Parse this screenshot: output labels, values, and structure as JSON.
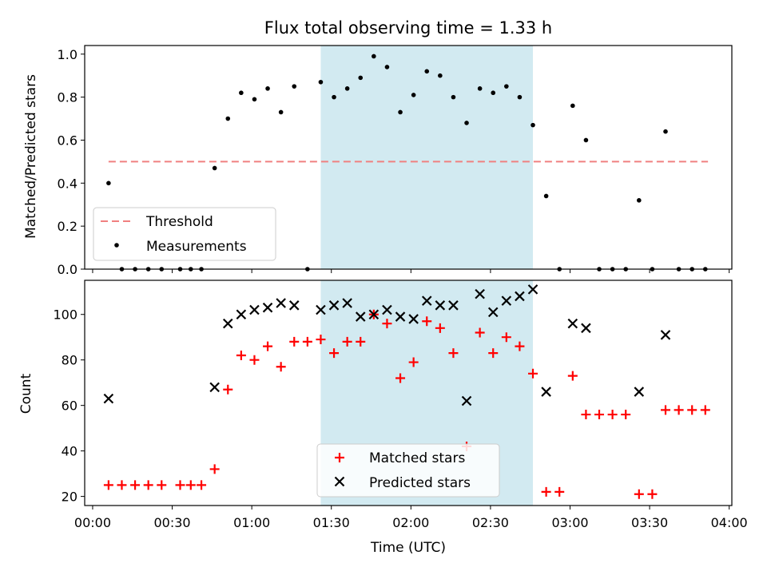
{
  "figure": {
    "title": "Flux total observing time = 1.33 h"
  },
  "colors": {
    "threshold": "#f08080",
    "matched": "#ff0000",
    "predicted": "#000000",
    "highlight": "#add8e6"
  },
  "chart_data": [
    {
      "type": "scatter",
      "panel": "top",
      "title": "Flux total observing time = 1.33 h",
      "xlabel": "",
      "ylabel": "Matched/Predicted stars",
      "xlim": [
        "23:57",
        "04:01"
      ],
      "ylim": [
        0,
        1.04
      ],
      "yticks": [
        0.0,
        0.2,
        0.4,
        0.6,
        0.8,
        1.0
      ],
      "ytick_labels": [
        "0.0",
        "0.2",
        "0.4",
        "0.6",
        "0.8",
        "1.0"
      ],
      "highlight_span": [
        "01:26",
        "02:46"
      ],
      "legend": {
        "placement": "lower-left",
        "entries": [
          "Threshold",
          "Measurements"
        ]
      },
      "threshold": {
        "name": "Threshold",
        "y": 0.5,
        "x_range": [
          "00:06",
          "03:52"
        ]
      },
      "series": [
        {
          "name": "Measurements",
          "points": [
            [
              "00:06",
              0.4
            ],
            [
              "00:11",
              0.0
            ],
            [
              "00:16",
              0.0
            ],
            [
              "00:21",
              0.0
            ],
            [
              "00:26",
              0.0
            ],
            [
              "00:33",
              0.0
            ],
            [
              "00:37",
              0.0
            ],
            [
              "00:41",
              0.0
            ],
            [
              "00:46",
              0.47
            ],
            [
              "00:51",
              0.7
            ],
            [
              "00:56",
              0.82
            ],
            [
              "01:01",
              0.79
            ],
            [
              "01:06",
              0.84
            ],
            [
              "01:11",
              0.73
            ],
            [
              "01:16",
              0.85
            ],
            [
              "01:21",
              0.0
            ],
            [
              "01:26",
              0.87
            ],
            [
              "01:31",
              0.8
            ],
            [
              "01:36",
              0.84
            ],
            [
              "01:41",
              0.89
            ],
            [
              "01:46",
              0.99
            ],
            [
              "01:51",
              0.94
            ],
            [
              "01:56",
              0.73
            ],
            [
              "02:01",
              0.81
            ],
            [
              "02:06",
              0.92
            ],
            [
              "02:11",
              0.9
            ],
            [
              "02:16",
              0.8
            ],
            [
              "02:21",
              0.68
            ],
            [
              "02:26",
              0.84
            ],
            [
              "02:31",
              0.82
            ],
            [
              "02:36",
              0.85
            ],
            [
              "02:41",
              0.8
            ],
            [
              "02:46",
              0.67
            ],
            [
              "02:51",
              0.34
            ],
            [
              "02:56",
              0.0
            ],
            [
              "03:01",
              0.76
            ],
            [
              "03:06",
              0.6
            ],
            [
              "03:11",
              0.0
            ],
            [
              "03:16",
              0.0
            ],
            [
              "03:21",
              0.0
            ],
            [
              "03:26",
              0.32
            ],
            [
              "03:31",
              0.0
            ],
            [
              "03:36",
              0.64
            ],
            [
              "03:41",
              0.0
            ],
            [
              "03:46",
              0.0
            ],
            [
              "03:51",
              0.0
            ]
          ]
        }
      ]
    },
    {
      "type": "scatter",
      "panel": "bottom",
      "xlabel": "Time (UTC)",
      "ylabel": "Count",
      "xlim": [
        "23:57",
        "04:01"
      ],
      "ylim": [
        16,
        115
      ],
      "xticks": [
        "00:00",
        "00:30",
        "01:00",
        "01:30",
        "02:00",
        "02:30",
        "03:00",
        "03:30",
        "04:00"
      ],
      "xtick_labels": [
        "00:00",
        "00:30",
        "01:00",
        "01:30",
        "02:00",
        "02:30",
        "03:00",
        "03:30",
        "04:00"
      ],
      "yticks": [
        20,
        40,
        60,
        80,
        100
      ],
      "ytick_labels": [
        "20",
        "40",
        "60",
        "80",
        "100"
      ],
      "highlight_span": [
        "01:26",
        "02:46"
      ],
      "legend": {
        "placement": "lower-center",
        "entries": [
          "Matched stars",
          "Predicted stars"
        ]
      },
      "series": [
        {
          "name": "Matched stars",
          "marker": "plus",
          "points": [
            [
              "00:06",
              25
            ],
            [
              "00:11",
              25
            ],
            [
              "00:16",
              25
            ],
            [
              "00:21",
              25
            ],
            [
              "00:26",
              25
            ],
            [
              "00:33",
              25
            ],
            [
              "00:37",
              25
            ],
            [
              "00:41",
              25
            ],
            [
              "00:46",
              32
            ],
            [
              "00:51",
              67
            ],
            [
              "00:56",
              82
            ],
            [
              "01:01",
              80
            ],
            [
              "01:06",
              86
            ],
            [
              "01:11",
              77
            ],
            [
              "01:16",
              88
            ],
            [
              "01:21",
              88
            ],
            [
              "01:26",
              89
            ],
            [
              "01:31",
              83
            ],
            [
              "01:36",
              88
            ],
            [
              "01:41",
              88
            ],
            [
              "01:46",
              100
            ],
            [
              "01:51",
              96
            ],
            [
              "01:56",
              72
            ],
            [
              "02:01",
              79
            ],
            [
              "02:06",
              97
            ],
            [
              "02:11",
              94
            ],
            [
              "02:16",
              83
            ],
            [
              "02:21",
              42
            ],
            [
              "02:26",
              92
            ],
            [
              "02:31",
              83
            ],
            [
              "02:36",
              90
            ],
            [
              "02:41",
              86
            ],
            [
              "02:46",
              74
            ],
            [
              "02:51",
              22
            ],
            [
              "02:56",
              22
            ],
            [
              "03:01",
              73
            ],
            [
              "03:06",
              56
            ],
            [
              "03:11",
              56
            ],
            [
              "03:16",
              56
            ],
            [
              "03:21",
              56
            ],
            [
              "03:26",
              21
            ],
            [
              "03:31",
              21
            ],
            [
              "03:36",
              58
            ],
            [
              "03:41",
              58
            ],
            [
              "03:46",
              58
            ],
            [
              "03:51",
              58
            ]
          ]
        },
        {
          "name": "Predicted stars",
          "marker": "x",
          "points": [
            [
              "00:06",
              63
            ],
            [
              "00:46",
              68
            ],
            [
              "00:51",
              96
            ],
            [
              "00:56",
              100
            ],
            [
              "01:01",
              102
            ],
            [
              "01:06",
              103
            ],
            [
              "01:11",
              105
            ],
            [
              "01:16",
              104
            ],
            [
              "01:26",
              102
            ],
            [
              "01:31",
              104
            ],
            [
              "01:36",
              105
            ],
            [
              "01:41",
              99
            ],
            [
              "01:46",
              100
            ],
            [
              "01:51",
              102
            ],
            [
              "01:56",
              99
            ],
            [
              "02:01",
              98
            ],
            [
              "02:06",
              106
            ],
            [
              "02:11",
              104
            ],
            [
              "02:16",
              104
            ],
            [
              "02:21",
              62
            ],
            [
              "02:26",
              109
            ],
            [
              "02:31",
              101
            ],
            [
              "02:36",
              106
            ],
            [
              "02:41",
              108
            ],
            [
              "02:46",
              111
            ],
            [
              "02:51",
              66
            ],
            [
              "03:01",
              96
            ],
            [
              "03:06",
              94
            ],
            [
              "03:26",
              66
            ],
            [
              "03:36",
              91
            ]
          ]
        }
      ]
    }
  ]
}
